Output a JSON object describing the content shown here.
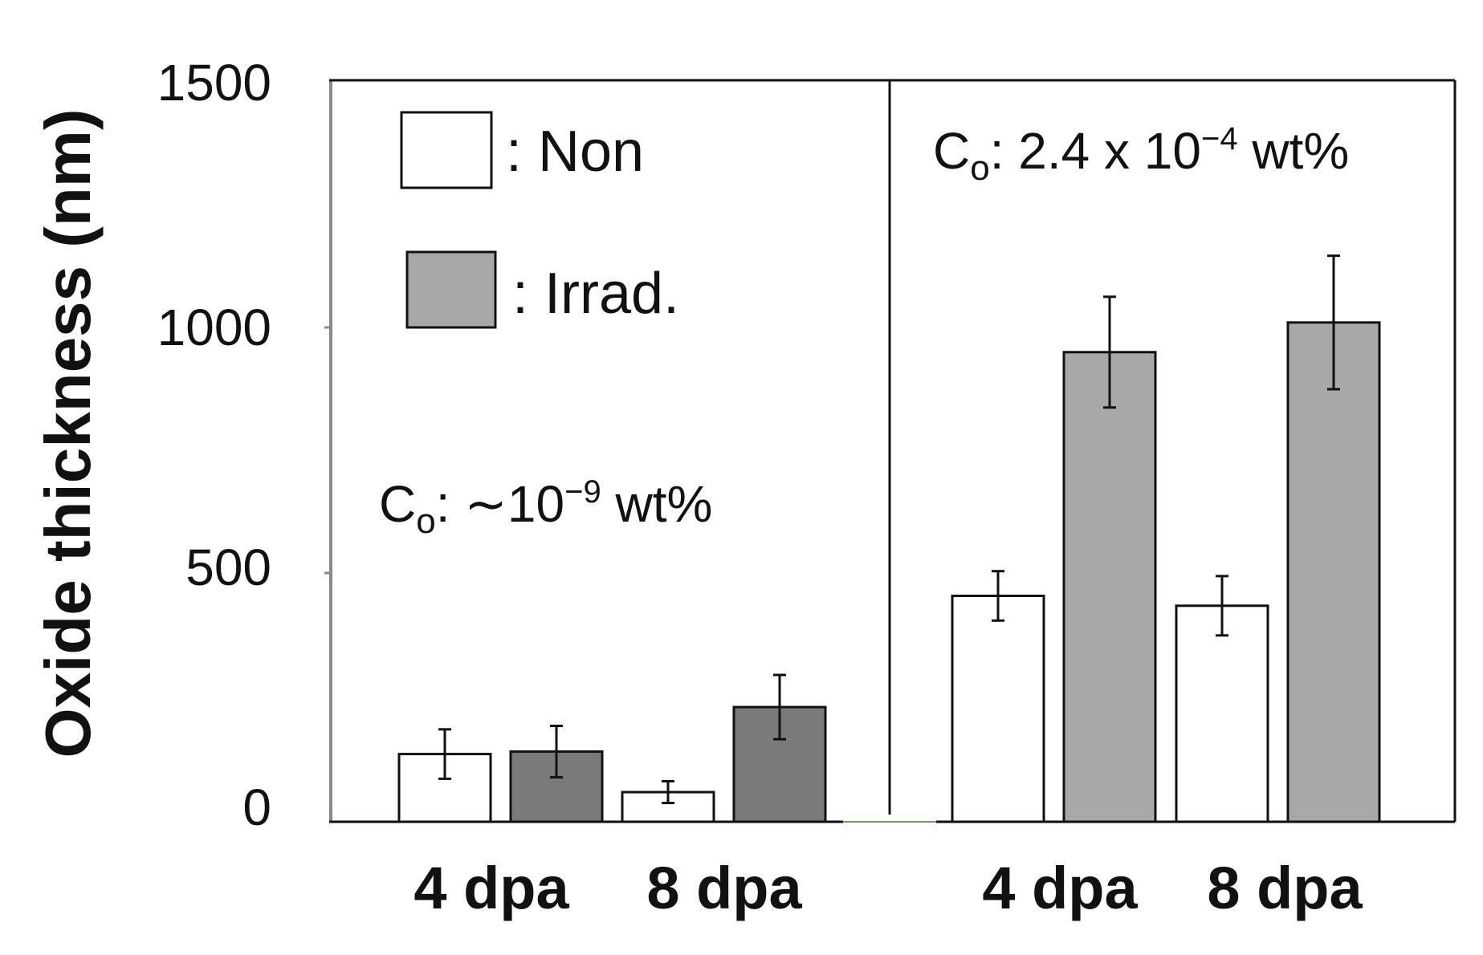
{
  "chart_data": {
    "type": "bar",
    "ylabel": "Oxide thickness (nm)",
    "ylim": [
      0,
      1500
    ],
    "yticks": [
      "0",
      "500",
      "1000",
      "1500"
    ],
    "legend": {
      "placement": "top-left",
      "entries": [
        {
          "label": ": Non",
          "color": "#ffffff"
        },
        {
          "label": ": Irrad.",
          "color": "#a8a8a8"
        }
      ]
    },
    "panels": [
      {
        "annotation": {
          "prefix": "C",
          "sub": "o",
          "mid": ": ∼10",
          "sup": "−9",
          "suffix": " wt%"
        },
        "groups": [
          {
            "label": "4 dpa",
            "non": {
              "value": 137,
              "err": 50
            },
            "irrad": {
              "value": 142,
              "err": 52
            }
          },
          {
            "label": "8 dpa",
            "non": {
              "value": 60,
              "err": 22
            },
            "irrad": {
              "value": 232,
              "err": 65
            }
          }
        ],
        "irrad_color": "#7a7a7a"
      },
      {
        "annotation": {
          "prefix": "C",
          "sub": "o",
          "mid": ": 2.4 x 10",
          "sup": "−4",
          "suffix": " wt%"
        },
        "groups": [
          {
            "label": "4 dpa",
            "non": {
              "value": 457,
              "err": 50
            },
            "irrad": {
              "value": 950,
              "err": 112
            }
          },
          {
            "label": "8 dpa",
            "non": {
              "value": 437,
              "err": 60
            },
            "irrad": {
              "value": 1010,
              "err": 135
            }
          }
        ],
        "irrad_color": "#a8a8a8"
      }
    ],
    "colors": {
      "non": "#ffffff",
      "stroke": "#111111",
      "axis": "#8a8a8a",
      "baseline_gap": "#6fa05a"
    }
  }
}
